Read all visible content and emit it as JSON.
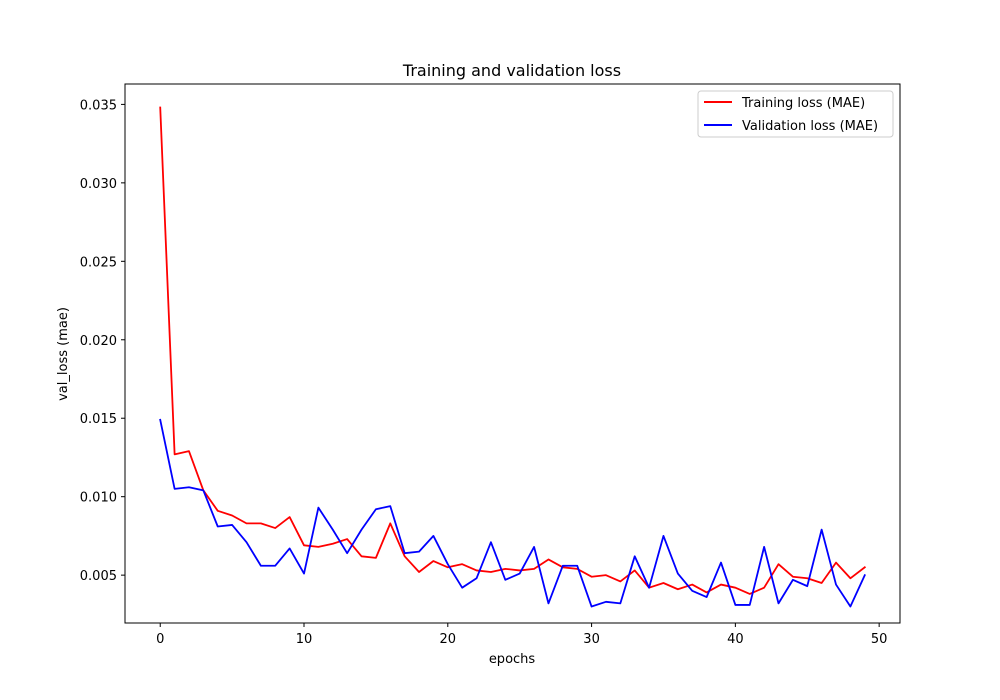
{
  "chart_data": {
    "type": "line",
    "title": "Training and validation loss",
    "xlabel": "epochs",
    "ylabel": "val_loss (mae)",
    "xlim": [
      -2.45,
      51.45
    ],
    "ylim": [
      0.00195,
      0.0363
    ],
    "xticks": [
      0,
      10,
      20,
      30,
      40,
      50
    ],
    "xtick_labels": [
      "0",
      "10",
      "20",
      "30",
      "40",
      "50"
    ],
    "yticks": [
      0.005,
      0.01,
      0.015,
      0.02,
      0.025,
      0.03,
      0.035
    ],
    "ytick_labels": [
      "0.005",
      "0.010",
      "0.015",
      "0.020",
      "0.025",
      "0.030",
      "0.035"
    ],
    "grid": false,
    "legend": "top-right",
    "x": [
      0,
      1,
      2,
      3,
      4,
      5,
      6,
      7,
      8,
      9,
      10,
      11,
      12,
      13,
      14,
      15,
      16,
      17,
      18,
      19,
      20,
      21,
      22,
      23,
      24,
      25,
      26,
      27,
      28,
      29,
      30,
      31,
      32,
      33,
      34,
      35,
      36,
      37,
      38,
      39,
      40,
      41,
      42,
      43,
      44,
      45,
      46,
      47,
      48,
      49
    ],
    "series": [
      {
        "name": "Training loss (MAE)",
        "color": "#ff0000",
        "values": [
          0.0348,
          0.0127,
          0.0129,
          0.0104,
          0.0091,
          0.0088,
          0.0083,
          0.0083,
          0.008,
          0.0087,
          0.0069,
          0.0068,
          0.007,
          0.0073,
          0.0062,
          0.0061,
          0.0083,
          0.0062,
          0.0052,
          0.0059,
          0.0055,
          0.0057,
          0.0053,
          0.0052,
          0.0054,
          0.0053,
          0.0054,
          0.006,
          0.0055,
          0.0054,
          0.0049,
          0.005,
          0.0046,
          0.0053,
          0.0042,
          0.0045,
          0.0041,
          0.0044,
          0.0039,
          0.0044,
          0.0042,
          0.0038,
          0.0042,
          0.0057,
          0.0049,
          0.0048,
          0.0045,
          0.0058,
          0.0048,
          0.0055
        ]
      },
      {
        "name": "Validation loss (MAE)",
        "color": "#0000ff",
        "values": [
          0.0149,
          0.0105,
          0.0106,
          0.0104,
          0.0081,
          0.0082,
          0.0071,
          0.0056,
          0.0056,
          0.0067,
          0.0051,
          0.0093,
          0.0079,
          0.0064,
          0.0079,
          0.0092,
          0.0094,
          0.0064,
          0.0065,
          0.0075,
          0.0057,
          0.0042,
          0.0048,
          0.0071,
          0.0047,
          0.0051,
          0.0068,
          0.0032,
          0.0056,
          0.0056,
          0.003,
          0.0033,
          0.0032,
          0.0062,
          0.0042,
          0.0075,
          0.0051,
          0.004,
          0.0036,
          0.0058,
          0.0031,
          0.0031,
          0.0068,
          0.0032,
          0.0047,
          0.0043,
          0.0079,
          0.0044,
          0.003,
          0.005
        ]
      }
    ]
  }
}
